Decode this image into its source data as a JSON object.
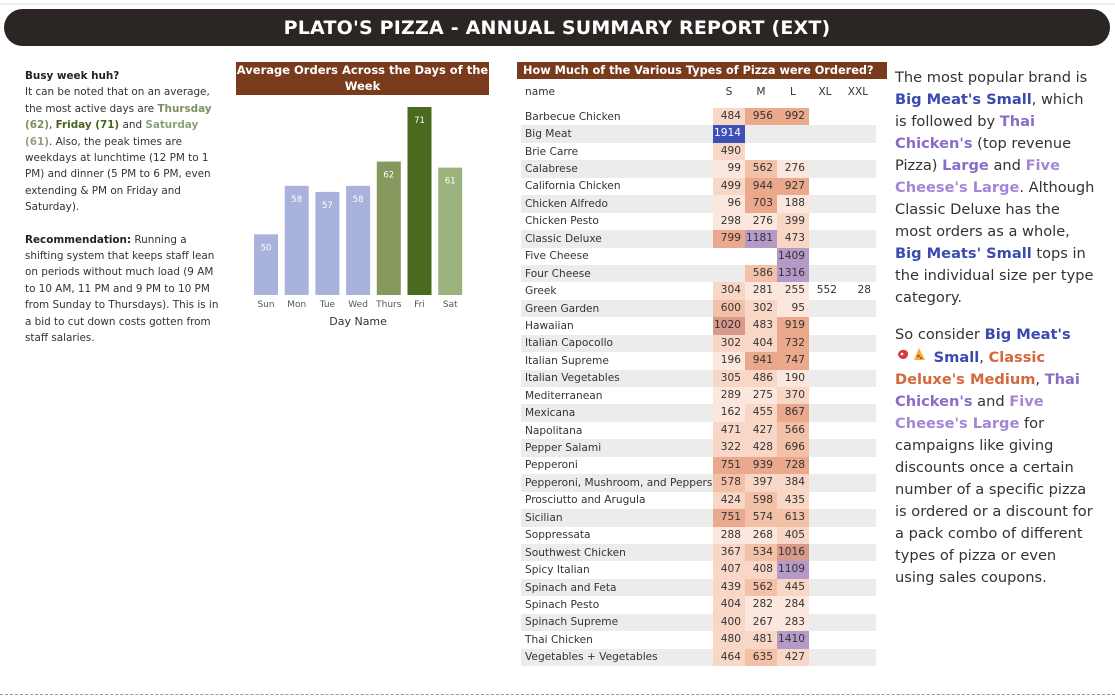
{
  "title": "PLATO'S PIZZA - ANNUAL SUMMARY REPORT (EXT)",
  "left_text": {
    "heading": "Busy week huh?",
    "p1_a": "It can be noted that on an average, the most active days are ",
    "thursday": "Thursday (62)",
    "comma1": ", ",
    "friday": "Friday (71)",
    "and1": " and ",
    "saturday": "Saturday (61)",
    "p1_b": ". Also, the peak times are weekdays at lunchtime (12 PM to 1 PM) and dinner (5 PM to 6 PM, even extending & PM on Friday and Saturday).",
    "rec_label": "Recommendation:",
    "rec_text": " Running a shifting system that keeps staff lean on periods without much load (9 AM to 10 AM, 11 PM and 9 PM to 10 PM from Sunday to Thursdays). This is in a bid to cut down costs gotten from staff salaries."
  },
  "chart_data": {
    "type": "bar",
    "title": "Average Orders Across the Days of the Week",
    "xlabel": "Day Name",
    "ylabel": "",
    "categories": [
      "Sun",
      "Mon",
      "Tue",
      "Wed",
      "Thurs",
      "Fri",
      "Sat"
    ],
    "values": [
      50,
      58,
      57,
      58,
      62,
      71,
      61
    ],
    "ylim": [
      40,
      71
    ],
    "bar_colors": [
      "#a9b1dd",
      "#a9b1dd",
      "#a9b1dd",
      "#a9b1dd",
      "#85995e",
      "#4b6a1e",
      "#9db37f"
    ],
    "data_labels": true,
    "grid": false,
    "legend": "none"
  },
  "table": {
    "title": "How Much of the Various Types of Pizza were Ordered?",
    "columns": [
      "name",
      "S",
      "M",
      "L",
      "XL",
      "XXL"
    ],
    "rows": [
      {
        "name": "Barbecue Chicken",
        "S": "484",
        "M": "956",
        "L": "992",
        "XL": "",
        "XXL": ""
      },
      {
        "name": "Big Meat",
        "S": "1914",
        "M": "",
        "L": "",
        "XL": "",
        "XXL": ""
      },
      {
        "name": "Brie Carre",
        "S": "490",
        "M": "",
        "L": "",
        "XL": "",
        "XXL": ""
      },
      {
        "name": "Calabrese",
        "S": "99",
        "M": "562",
        "L": "276",
        "XL": "",
        "XXL": ""
      },
      {
        "name": "California Chicken",
        "S": "499",
        "M": "944",
        "L": "927",
        "XL": "",
        "XXL": ""
      },
      {
        "name": "Chicken Alfredo",
        "S": "96",
        "M": "703",
        "L": "188",
        "XL": "",
        "XXL": ""
      },
      {
        "name": "Chicken Pesto",
        "S": "298",
        "M": "276",
        "L": "399",
        "XL": "",
        "XXL": ""
      },
      {
        "name": "Classic Deluxe",
        "S": "799",
        "M": "1181",
        "L": "473",
        "XL": "",
        "XXL": ""
      },
      {
        "name": "Five Cheese",
        "S": "",
        "M": "",
        "L": "1409",
        "XL": "",
        "XXL": ""
      },
      {
        "name": "Four Cheese",
        "S": "",
        "M": "586",
        "L": "1316",
        "XL": "",
        "XXL": ""
      },
      {
        "name": "Greek",
        "S": "304",
        "M": "281",
        "L": "255",
        "XL": "552",
        "XXL": "28"
      },
      {
        "name": "Green Garden",
        "S": "600",
        "M": "302",
        "L": "95",
        "XL": "",
        "XXL": ""
      },
      {
        "name": "Hawaiian",
        "S": "1020",
        "M": "483",
        "L": "919",
        "XL": "",
        "XXL": ""
      },
      {
        "name": "Italian Capocollo",
        "S": "302",
        "M": "404",
        "L": "732",
        "XL": "",
        "XXL": ""
      },
      {
        "name": "Italian Supreme",
        "S": "196",
        "M": "941",
        "L": "747",
        "XL": "",
        "XXL": ""
      },
      {
        "name": "Italian Vegetables",
        "S": "305",
        "M": "486",
        "L": "190",
        "XL": "",
        "XXL": ""
      },
      {
        "name": "Mediterranean",
        "S": "289",
        "M": "275",
        "L": "370",
        "XL": "",
        "XXL": ""
      },
      {
        "name": "Mexicana",
        "S": "162",
        "M": "455",
        "L": "867",
        "XL": "",
        "XXL": ""
      },
      {
        "name": "Napolitana",
        "S": "471",
        "M": "427",
        "L": "566",
        "XL": "",
        "XXL": ""
      },
      {
        "name": "Pepper Salami",
        "S": "322",
        "M": "428",
        "L": "696",
        "XL": "",
        "XXL": ""
      },
      {
        "name": "Pepperoni",
        "S": "751",
        "M": "939",
        "L": "728",
        "XL": "",
        "XXL": ""
      },
      {
        "name": "Pepperoni, Mushroom, and Peppers",
        "S": "578",
        "M": "397",
        "L": "384",
        "XL": "",
        "XXL": ""
      },
      {
        "name": "Prosciutto and Arugula",
        "S": "424",
        "M": "598",
        "L": "435",
        "XL": "",
        "XXL": ""
      },
      {
        "name": "Sicilian",
        "S": "751",
        "M": "574",
        "L": "613",
        "XL": "",
        "XXL": ""
      },
      {
        "name": "Soppressata",
        "S": "288",
        "M": "268",
        "L": "405",
        "XL": "",
        "XXL": ""
      },
      {
        "name": "Southwest Chicken",
        "S": "367",
        "M": "534",
        "L": "1016",
        "XL": "",
        "XXL": ""
      },
      {
        "name": "Spicy Italian",
        "S": "407",
        "M": "408",
        "L": "1109",
        "XL": "",
        "XXL": ""
      },
      {
        "name": "Spinach and Feta",
        "S": "439",
        "M": "562",
        "L": "445",
        "XL": "",
        "XXL": ""
      },
      {
        "name": "Spinach Pesto",
        "S": "404",
        "M": "282",
        "L": "284",
        "XL": "",
        "XXL": ""
      },
      {
        "name": "Spinach Supreme",
        "S": "400",
        "M": "267",
        "L": "283",
        "XL": "",
        "XXL": ""
      },
      {
        "name": "Thai Chicken",
        "S": "480",
        "M": "481",
        "L": "1410",
        "XL": "",
        "XXL": ""
      },
      {
        "name": "Vegetables + Vegetables",
        "S": "464",
        "M": "635",
        "L": "427",
        "XL": "",
        "XXL": ""
      }
    ]
  },
  "right_text": {
    "p1_a": "The most popular brand is ",
    "big_meat_small": "Big Meat's Small",
    "p1_b": ", which is followed by ",
    "thai_chicken": "Thai Chicken's",
    "p1_c": " (top revenue Pizza) ",
    "large1": "Large",
    "and1": " and ",
    "five_cheese_large": "Five Cheese's Large",
    "p1_d": ". Although Classic Deluxe has the most orders as a whole, ",
    "big_meats_small": "Big Meats' Small",
    "p1_e": " tops in the individual size per type category.",
    "p2_a": "So consider ",
    "big_meat2": "Big Meat's",
    "small2": "Small",
    "comma": ", ",
    "classic_deluxe_medium": "Classic Deluxe's Medium",
    "comma2": ", ",
    "thai_chicken2": "Thai Chicken's",
    "and2": " and ",
    "five_cheese_large2": "Five Cheese's Large",
    "p2_b": " for campaigns like giving discounts once a certain number of a specific pizza is ordered or a discount for a pack combo of different types of pizza or even using sales coupons."
  }
}
